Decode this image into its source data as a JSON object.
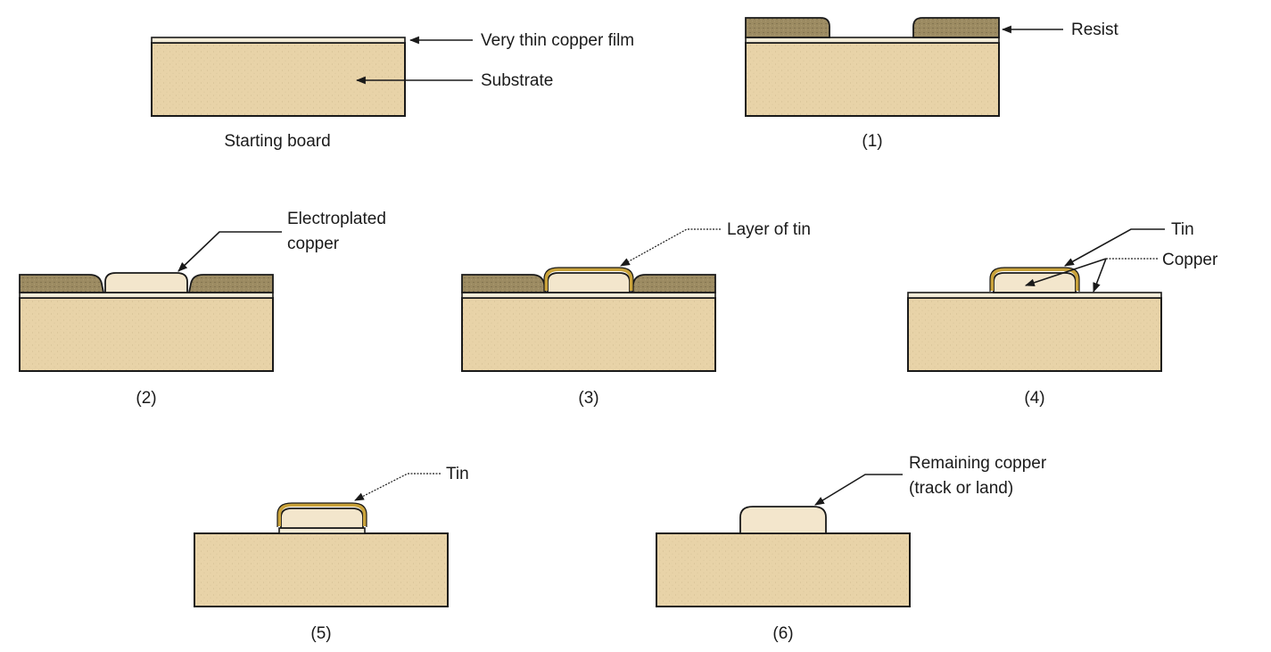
{
  "panels": {
    "start": {
      "caption": "Starting board"
    },
    "p1": {
      "caption": "(1)"
    },
    "p2": {
      "caption": "(2)"
    },
    "p3": {
      "caption": "(3)"
    },
    "p4": {
      "caption": "(4)"
    },
    "p5": {
      "caption": "(5)"
    },
    "p6": {
      "caption": "(6)"
    }
  },
  "labels": {
    "copper_film": "Very thin copper film",
    "substrate": "Substrate",
    "resist": "Resist",
    "electroplated_line1": "Electroplated",
    "electroplated_line2": "copper",
    "layer_of_tin": "Layer of tin",
    "tin_p4": "Tin",
    "copper_p4": "Copper",
    "tin_p5": "Tin",
    "remaining_line1": "Remaining copper",
    "remaining_line2": "(track or land)"
  },
  "colors": {
    "substrate": "#e8d3a8",
    "resist": "#9c8b62",
    "copper": "#f3e6cc",
    "tin": "#c9a23a"
  }
}
